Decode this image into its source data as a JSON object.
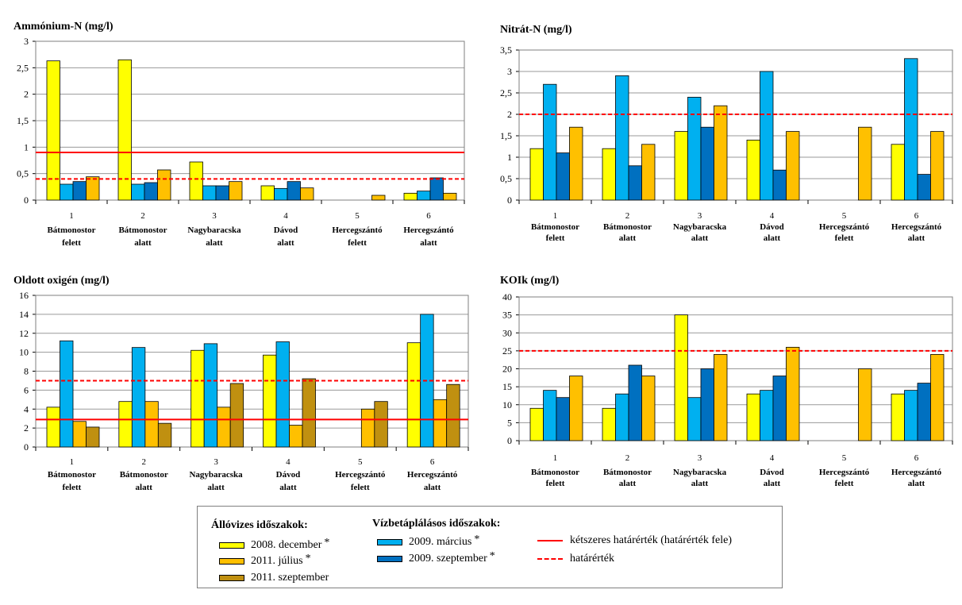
{
  "series_colors": {
    "dec2008": "#ffff00",
    "mar2009": "#00b0f0",
    "sep2009": "#0070c0",
    "jul2011": "#ffc000",
    "sep2011": "#c09010",
    "limit_double": "#ff0000",
    "limit": "#ff0000"
  },
  "chart_data": [
    {
      "type": "bar",
      "title": "Ammónium-N (mg/l)",
      "ylim": [
        0,
        3
      ],
      "yticks": [
        "0",
        "0,5",
        "1",
        "1,5",
        "2",
        "2,5",
        "3"
      ],
      "categories": [
        {
          "num": "1",
          "line1": "Bátmonostor",
          "line2": "felett"
        },
        {
          "num": "2",
          "line1": "Bátmonostor",
          "line2": "alatt"
        },
        {
          "num": "3",
          "line1": "Nagybaracska",
          "line2": "alatt"
        },
        {
          "num": "4",
          "line1": "Dávod",
          "line2": "alatt"
        },
        {
          "num": "5",
          "line1": "Hercegszántó",
          "line2": "felett"
        },
        {
          "num": "6",
          "line1": "Hercegszántó",
          "line2": "alatt"
        }
      ],
      "series": [
        {
          "key": "dec2008",
          "values": [
            2.63,
            2.65,
            0.72,
            0.27,
            null,
            0.13
          ]
        },
        {
          "key": "mar2009",
          "values": [
            0.3,
            0.3,
            0.27,
            0.22,
            null,
            0.17
          ]
        },
        {
          "key": "sep2009",
          "values": [
            0.35,
            0.33,
            0.27,
            0.35,
            null,
            0.42
          ]
        },
        {
          "key": "jul2011",
          "values": [
            0.44,
            0.57,
            0.35,
            0.23,
            0.09,
            0.13
          ]
        }
      ],
      "limits": [
        {
          "type": "solid",
          "value": 0.9
        },
        {
          "type": "dashed",
          "value": 0.4
        }
      ]
    },
    {
      "type": "bar",
      "title": "Nitrát-N (mg/l)",
      "ylim": [
        0,
        3.5
      ],
      "yticks": [
        "0",
        "0,5",
        "1",
        "1,5",
        "2",
        "2,5",
        "3",
        "3,5"
      ],
      "categories": [
        {
          "num": "1",
          "line1": "Bátmonostor",
          "line2": "felett"
        },
        {
          "num": "2",
          "line1": "Bátmonostor",
          "line2": "alatt"
        },
        {
          "num": "3",
          "line1": "Nagybaracska",
          "line2": "alatt"
        },
        {
          "num": "4",
          "line1": "Dávod",
          "line2": "alatt"
        },
        {
          "num": "5",
          "line1": "Hercegszántó",
          "line2": "felett"
        },
        {
          "num": "6",
          "line1": "Hercegszántó",
          "line2": "alatt"
        }
      ],
      "series": [
        {
          "key": "dec2008",
          "values": [
            1.2,
            1.2,
            1.6,
            1.4,
            null,
            1.3
          ]
        },
        {
          "key": "mar2009",
          "values": [
            2.7,
            2.9,
            2.4,
            3.0,
            null,
            3.3
          ]
        },
        {
          "key": "sep2009",
          "values": [
            1.1,
            0.8,
            1.7,
            0.7,
            null,
            0.6
          ]
        },
        {
          "key": "jul2011",
          "values": [
            1.7,
            1.3,
            2.2,
            1.6,
            1.7,
            1.6
          ]
        }
      ],
      "limits": [
        {
          "type": "dashed",
          "value": 2.0
        }
      ]
    },
    {
      "type": "bar",
      "title": "Oldott oxigén (mg/l)",
      "ylim": [
        0,
        16
      ],
      "yticks": [
        "0",
        "2",
        "4",
        "6",
        "8",
        "10",
        "12",
        "14",
        "16"
      ],
      "categories": [
        {
          "num": "1",
          "line1": "Bátmonostor",
          "line2": "felett"
        },
        {
          "num": "2",
          "line1": "Bátmonostor",
          "line2": "alatt"
        },
        {
          "num": "3",
          "line1": "Nagybaracska",
          "line2": "alatt"
        },
        {
          "num": "4",
          "line1": "Dávod",
          "line2": "alatt"
        },
        {
          "num": "5",
          "line1": "Hercegszántó",
          "line2": "felett"
        },
        {
          "num": "6",
          "line1": "Hercegszántó",
          "line2": "alatt"
        }
      ],
      "series": [
        {
          "key": "dec2008",
          "values": [
            4.2,
            4.8,
            10.2,
            9.7,
            null,
            11.0
          ]
        },
        {
          "key": "mar2009",
          "values": [
            11.2,
            10.5,
            10.9,
            11.1,
            null,
            14.0
          ]
        },
        {
          "key": "jul2011",
          "values": [
            2.7,
            4.8,
            4.2,
            2.3,
            4.0,
            5.0
          ]
        },
        {
          "key": "sep2011",
          "values": [
            2.1,
            2.5,
            6.7,
            7.2,
            4.8,
            6.6
          ]
        }
      ],
      "limits": [
        {
          "type": "solid",
          "value": 2.9
        },
        {
          "type": "dashed",
          "value": 7.0
        }
      ]
    },
    {
      "type": "bar",
      "title": "KOIk (mg/l)",
      "ylim": [
        0,
        40
      ],
      "yticks": [
        "0",
        "5",
        "10",
        "15",
        "20",
        "25",
        "30",
        "35",
        "40"
      ],
      "categories": [
        {
          "num": "1",
          "line1": "Bátmonostor",
          "line2": "felett"
        },
        {
          "num": "2",
          "line1": "Bátmonostor",
          "line2": "alatt"
        },
        {
          "num": "3",
          "line1": "Nagybaracska",
          "line2": "alatt"
        },
        {
          "num": "4",
          "line1": "Dávod",
          "line2": "alatt"
        },
        {
          "num": "5",
          "line1": "Hercegszántó",
          "line2": "felett"
        },
        {
          "num": "6",
          "line1": "Hercegszántó",
          "line2": "alatt"
        }
      ],
      "series": [
        {
          "key": "dec2008",
          "values": [
            9,
            9,
            35,
            13,
            null,
            13
          ]
        },
        {
          "key": "mar2009",
          "values": [
            14,
            13,
            12,
            14,
            null,
            14
          ]
        },
        {
          "key": "sep2009",
          "values": [
            12,
            21,
            20,
            18,
            null,
            16
          ]
        },
        {
          "key": "jul2011",
          "values": [
            18,
            18,
            24,
            26,
            20,
            24
          ]
        }
      ],
      "limits": [
        {
          "type": "dashed",
          "value": 25
        }
      ]
    }
  ],
  "legend": {
    "heading_standing": "Állóvizes időszakok:",
    "heading_supply": "Vízbetáplálásos időszakok:",
    "star": "*",
    "items": {
      "dec2008": "2008. december",
      "jul2011": "2011. július",
      "sep2011": "2011. szeptember",
      "mar2009": "2009. március",
      "sep2009": "2009. szeptember",
      "limit_double": "kétszeres határérték (határérték fele)",
      "limit": "határérték"
    }
  }
}
